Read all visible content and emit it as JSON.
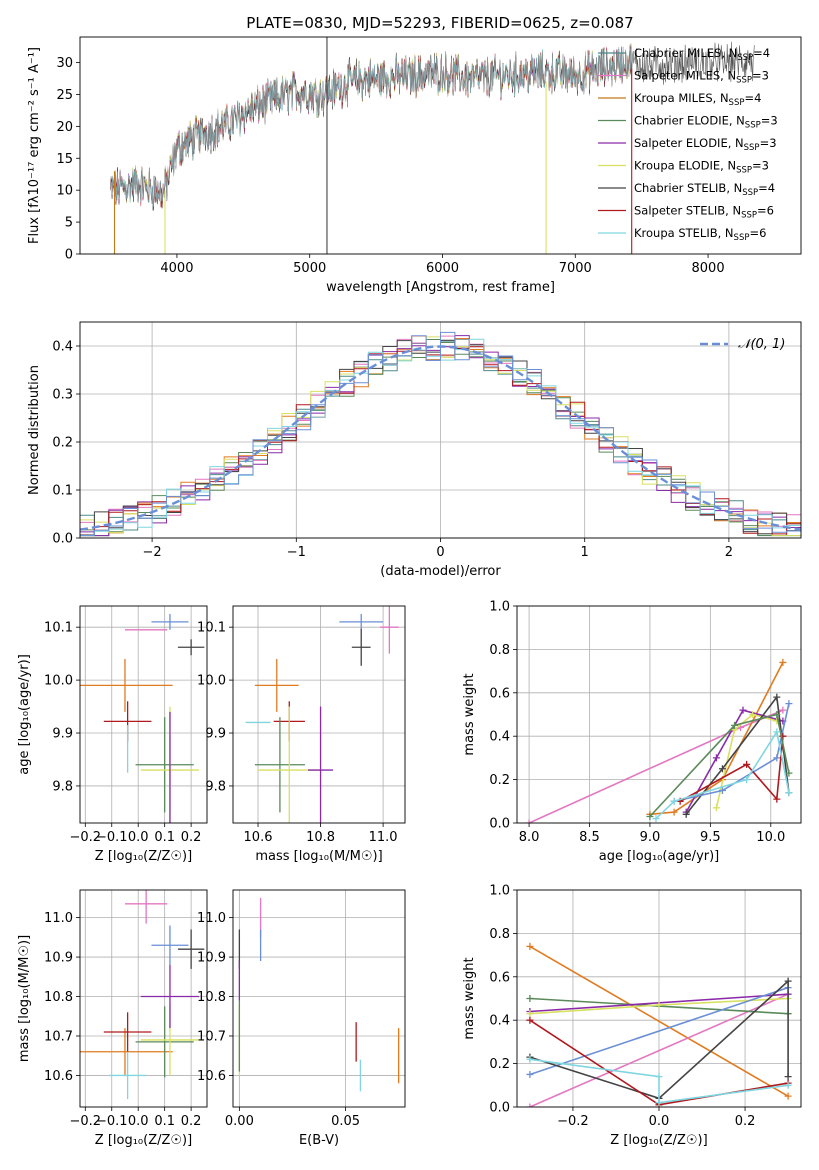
{
  "figure": {
    "title": "PLATE=0830, MJD=52293, FIBERID=0625, z=0.087"
  },
  "chart_data": [
    {
      "id": "spectrum",
      "type": "line",
      "xlabel": "wavelength [Angstrom, rest frame]",
      "ylabel": "Flux [fλ10⁻¹⁷ erg cm⁻² s⁻¹ A⁻¹]",
      "xlim": [
        3270,
        8700
      ],
      "ylim": [
        0,
        34
      ],
      "xticks": [
        4000,
        5000,
        6000,
        7000,
        8000
      ],
      "yticks": [
        0,
        5,
        10,
        15,
        20,
        25,
        30
      ],
      "grid": false,
      "legend_position": "top-right",
      "continuum": [
        {
          "x": 3500,
          "y": 10
        },
        {
          "x": 3700,
          "y": 11
        },
        {
          "x": 3900,
          "y": 9.5
        },
        {
          "x": 4000,
          "y": 16.5
        },
        {
          "x": 4200,
          "y": 19
        },
        {
          "x": 4400,
          "y": 20.5
        },
        {
          "x": 4500,
          "y": 22
        },
        {
          "x": 4700,
          "y": 24
        },
        {
          "x": 4900,
          "y": 25.5
        },
        {
          "x": 5100,
          "y": 25
        },
        {
          "x": 5300,
          "y": 27
        },
        {
          "x": 5500,
          "y": 27.5
        },
        {
          "x": 5800,
          "y": 28
        },
        {
          "x": 6000,
          "y": 28.5
        },
        {
          "x": 6200,
          "y": 27.5
        },
        {
          "x": 6500,
          "y": 28
        },
        {
          "x": 6800,
          "y": 28.5
        },
        {
          "x": 7000,
          "y": 28
        },
        {
          "x": 7200,
          "y": 29
        },
        {
          "x": 7400,
          "y": 30
        },
        {
          "x": 7600,
          "y": 29.5
        },
        {
          "x": 8000,
          "y": 30
        },
        {
          "x": 8200,
          "y": 30
        },
        {
          "x": 8500,
          "y": 30
        }
      ],
      "series": [
        {
          "name": "Chabrier MILES, N_SSP=4",
          "color": "#4b8b8b"
        },
        {
          "name": "Salpeter MILES, N_SSP=3",
          "color": "#e377c2"
        },
        {
          "name": "Kroupa MILES, N_SSP=4",
          "color": "#c07a1a"
        },
        {
          "name": "Chabrier ELODIE, N_SSP=3",
          "color": "#5a8a5a"
        },
        {
          "name": "Salpeter ELODIE, N_SSP=3",
          "color": "#8a2aa8"
        },
        {
          "name": "Kroupa ELODIE, N_SSP=3",
          "color": "#d8e060"
        },
        {
          "name": "Chabrier STELIB, N_SSP=4",
          "color": "#444444"
        },
        {
          "name": "Salpeter STELIB, N_SSP=6",
          "color": "#b0191e"
        },
        {
          "name": "Kroupa STELIB, N_SSP=6",
          "color": "#7fd6e0"
        }
      ]
    },
    {
      "id": "residuals",
      "type": "line",
      "xlabel": "(data-model)/error",
      "ylabel": "Normed distribution",
      "xlim": [
        -2.5,
        2.5
      ],
      "ylim": [
        0,
        0.45
      ],
      "xticks": [
        -2,
        -1,
        0,
        1,
        2
      ],
      "yticks": [
        0.0,
        0.1,
        0.2,
        0.3,
        0.4
      ],
      "grid": true,
      "legend_position": "top-right",
      "legend_entry": "𝒩(0, 1)",
      "gaussian": {
        "mean": 0,
        "sigma": 1,
        "color": "#6a8fd6"
      },
      "histogram_colors": [
        "#4b8b8b",
        "#e377c2",
        "#e07b20",
        "#5a8a5a",
        "#8a2aa8",
        "#d8e060",
        "#444444",
        "#b0191e",
        "#7fd6e0",
        "#6a8fd6"
      ]
    },
    {
      "id": "age_vs_Z",
      "type": "scatter",
      "xlabel": "Z [log₁₀(Z/Z☉)]",
      "ylabel": "age  [log₁₀(age/yr)]",
      "xlim": [
        -0.22,
        0.26
      ],
      "ylim": [
        9.73,
        10.14
      ],
      "xticks": [
        -0.2,
        -0.1,
        0.0,
        0.1,
        0.2
      ],
      "yticks": [
        9.8,
        9.9,
        10.0,
        10.1
      ],
      "grid": true,
      "points": [
        {
          "x": 0.03,
          "y": 10.095,
          "xerr": 0.08,
          "yerr": 0.0,
          "color": "#e377c2"
        },
        {
          "x": 0.12,
          "y": 10.11,
          "xerr": 0.07,
          "yerr": 0.015,
          "color": "#6a8fd6"
        },
        {
          "x": 0.2,
          "y": 10.062,
          "xerr": 0.05,
          "yerr": 0.015,
          "color": "#444444"
        },
        {
          "x": -0.05,
          "y": 9.99,
          "xerr": 0.18,
          "yerr": 0.05,
          "color": "#e07b20"
        },
        {
          "x": -0.04,
          "y": 9.922,
          "xerr": 0.09,
          "yerr": 0.038,
          "color": "#b0191e"
        },
        {
          "x": 0.0,
          "y": 9.92,
          "xerr": 0.0,
          "yerr": 0.0,
          "color": "#b0191e"
        },
        {
          "x": 0.1,
          "y": 9.84,
          "xerr": 0.11,
          "yerr": 0.09,
          "color": "#5a8a5a"
        },
        {
          "x": 0.12,
          "y": 9.83,
          "xerr": 0.11,
          "yerr": 0.12,
          "color": "#d8e060"
        },
        {
          "x": 0.12,
          "y": 9.82,
          "xerr": 0.0,
          "yerr": 0.12,
          "color": "#8a2aa8"
        },
        {
          "x": -0.04,
          "y": 9.87,
          "xerr": 0.0,
          "yerr": 0.045,
          "color": "#7fd6e0"
        }
      ]
    },
    {
      "id": "age_vs_mass",
      "type": "scatter",
      "xlabel": "mass [log₁₀(M/M☉)]",
      "ylabel": "",
      "xlim": [
        10.52,
        11.07
      ],
      "ylim": [
        9.73,
        10.14
      ],
      "xticks": [
        10.6,
        10.8,
        11.0
      ],
      "yticks": [
        9.8,
        9.9,
        10.0,
        10.1
      ],
      "grid": true,
      "points": [
        {
          "x": 11.02,
          "y": 10.1,
          "xerr": 0.03,
          "yerr": 0.05,
          "color": "#e377c2"
        },
        {
          "x": 10.93,
          "y": 10.11,
          "xerr": 0.07,
          "yerr": 0.015,
          "color": "#6a8fd6"
        },
        {
          "x": 10.93,
          "y": 10.062,
          "xerr": 0.03,
          "yerr": 0.035,
          "color": "#444444"
        },
        {
          "x": 10.66,
          "y": 9.99,
          "xerr": 0.07,
          "yerr": 0.05,
          "color": "#e07b20"
        },
        {
          "x": 10.7,
          "y": 9.922,
          "xerr": 0.05,
          "yerr": 0.038,
          "color": "#b0191e"
        },
        {
          "x": 10.6,
          "y": 9.92,
          "xerr": 0.04,
          "yerr": 0.0,
          "color": "#7fd6e0"
        },
        {
          "x": 10.67,
          "y": 9.84,
          "xerr": 0.08,
          "yerr": 0.09,
          "color": "#5a8a5a"
        },
        {
          "x": 10.7,
          "y": 9.83,
          "xerr": 0.1,
          "yerr": 0.12,
          "color": "#d8e060"
        },
        {
          "x": 10.8,
          "y": 9.83,
          "xerr": 0.04,
          "yerr": 0.12,
          "color": "#8a2aa8"
        }
      ]
    },
    {
      "id": "massweight_vs_age",
      "type": "line",
      "xlabel": "age  [log₁₀(age/yr)]",
      "ylabel": "mass weight",
      "xlim": [
        7.9,
        10.25
      ],
      "ylim": [
        0.0,
        1.0
      ],
      "xticks": [
        8.0,
        8.5,
        9.0,
        9.5,
        10.0
      ],
      "yticks": [
        0.0,
        0.2,
        0.4,
        0.6,
        0.8,
        1.0
      ],
      "grid": true,
      "series": [
        {
          "color": "#e377c2",
          "x": [
            8.0,
            9.75,
            10.1
          ],
          "y": [
            0.0,
            0.44,
            0.52
          ]
        },
        {
          "color": "#e07b20",
          "x": [
            9.0,
            9.2,
            9.6,
            10.1
          ],
          "y": [
            0.04,
            0.05,
            0.2,
            0.74
          ]
        },
        {
          "color": "#8a2aa8",
          "x": [
            9.3,
            9.55,
            9.77,
            10.1
          ],
          "y": [
            0.05,
            0.3,
            0.52,
            0.47
          ]
        },
        {
          "color": "#d8e060",
          "x": [
            9.55,
            9.7,
            9.85,
            10.05
          ],
          "y": [
            0.07,
            0.43,
            0.5,
            0.47
          ]
        },
        {
          "color": "#444444",
          "x": [
            9.3,
            9.6,
            10.05,
            10.15
          ],
          "y": [
            0.04,
            0.25,
            0.58,
            0.14
          ]
        },
        {
          "color": "#6a8fd6",
          "x": [
            9.2,
            9.6,
            10.05,
            10.15
          ],
          "y": [
            0.1,
            0.15,
            0.3,
            0.55
          ]
        },
        {
          "color": "#b0191e",
          "x": [
            9.25,
            9.8,
            10.05,
            10.1
          ],
          "y": [
            0.1,
            0.27,
            0.11,
            0.4
          ]
        },
        {
          "color": "#5a8a5a",
          "x": [
            9.0,
            9.7,
            10.05,
            10.15
          ],
          "y": [
            0.03,
            0.45,
            0.5,
            0.23
          ]
        },
        {
          "color": "#7fd6e0",
          "x": [
            9.05,
            9.2,
            9.8,
            10.05,
            10.15
          ],
          "y": [
            0.02,
            0.1,
            0.2,
            0.42,
            0.14
          ]
        }
      ]
    },
    {
      "id": "mass_vs_Z",
      "type": "scatter",
      "xlabel": "Z [log₁₀(Z/Z☉)]",
      "ylabel": "mass [log₁₀(M/M☉)]",
      "xlim": [
        -0.22,
        0.26
      ],
      "ylim": [
        10.52,
        11.07
      ],
      "xticks": [
        -0.2,
        -0.1,
        0.0,
        0.1,
        0.2
      ],
      "yticks": [
        10.6,
        10.7,
        10.8,
        10.9,
        11.0
      ],
      "grid": true,
      "points": [
        {
          "x": 0.03,
          "y": 11.035,
          "xerr": 0.08,
          "yerr": 0.05,
          "color": "#e377c2"
        },
        {
          "x": 0.12,
          "y": 10.93,
          "xerr": 0.07,
          "yerr": 0.05,
          "color": "#6a8fd6"
        },
        {
          "x": 0.2,
          "y": 10.92,
          "xerr": 0.05,
          "yerr": 0.05,
          "color": "#444444"
        },
        {
          "x": -0.05,
          "y": 10.66,
          "xerr": 0.18,
          "yerr": 0.06,
          "color": "#e07b20"
        },
        {
          "x": -0.04,
          "y": 10.71,
          "xerr": 0.09,
          "yerr": 0.05,
          "color": "#b0191e"
        },
        {
          "x": -0.04,
          "y": 10.6,
          "xerr": 0.07,
          "yerr": 0.06,
          "color": "#7fd6e0"
        },
        {
          "x": 0.1,
          "y": 10.685,
          "xerr": 0.11,
          "yerr": 0.09,
          "color": "#5a8a5a"
        },
        {
          "x": 0.12,
          "y": 10.69,
          "xerr": 0.11,
          "yerr": 0.09,
          "color": "#d8e060"
        },
        {
          "x": 0.12,
          "y": 10.8,
          "xerr": 0.11,
          "yerr": 0.08,
          "color": "#8a2aa8"
        }
      ]
    },
    {
      "id": "mass_vs_EBV",
      "type": "scatter",
      "xlabel": "E(B-V)",
      "ylabel": "",
      "xlim": [
        -0.003,
        0.078
      ],
      "ylim": [
        10.52,
        11.07
      ],
      "xticks": [
        0.0,
        0.05
      ],
      "yticks": [
        10.6,
        10.7,
        10.8,
        10.9,
        11.0
      ],
      "grid": true,
      "points": [
        {
          "x": 0.01,
          "y": 11.0,
          "xerr": 0.0,
          "yerr": 0.05,
          "color": "#e377c2"
        },
        {
          "x": 0.01,
          "y": 10.93,
          "xerr": 0.0,
          "yerr": 0.04,
          "color": "#6a8fd6"
        },
        {
          "x": 0.0,
          "y": 10.92,
          "xerr": 0.0,
          "yerr": 0.05,
          "color": "#444444"
        },
        {
          "x": 0.0,
          "y": 10.84,
          "xerr": 0.0,
          "yerr": 0.05,
          "color": "#8a2aa8"
        },
        {
          "x": 0.0,
          "y": 10.69,
          "xerr": 0.0,
          "yerr": 0.09,
          "color": "#d8e060"
        },
        {
          "x": 0.0,
          "y": 10.7,
          "xerr": 0.0,
          "yerr": 0.09,
          "color": "#5a8a5a"
        },
        {
          "x": 0.055,
          "y": 10.685,
          "xerr": 0.0,
          "yerr": 0.05,
          "color": "#b0191e"
        },
        {
          "x": 0.057,
          "y": 10.6,
          "xerr": 0.0,
          "yerr": 0.04,
          "color": "#7fd6e0"
        },
        {
          "x": 0.075,
          "y": 10.65,
          "xerr": 0.0,
          "yerr": 0.07,
          "color": "#e07b20"
        }
      ]
    },
    {
      "id": "massweight_vs_Z",
      "type": "line",
      "xlabel": "Z [log₁₀(Z/Z☉)]",
      "ylabel": "mass weight",
      "xlim": [
        -0.33,
        0.33
      ],
      "ylim": [
        0.0,
        1.0
      ],
      "xticks": [
        -0.2,
        0.0,
        0.2
      ],
      "yticks": [
        0.0,
        0.2,
        0.4,
        0.6,
        0.8,
        1.0
      ],
      "grid": true,
      "series": [
        {
          "color": "#e07b20",
          "x": [
            -0.3,
            0.3
          ],
          "y": [
            0.74,
            0.05
          ]
        },
        {
          "color": "#e377c2",
          "x": [
            -0.3,
            0.3
          ],
          "y": [
            0.0,
            0.52
          ]
        },
        {
          "color": "#5a8a5a",
          "x": [
            -0.3,
            0.3
          ],
          "y": [
            0.5,
            0.43
          ]
        },
        {
          "color": "#8a2aa8",
          "x": [
            -0.3,
            0.3
          ],
          "y": [
            0.44,
            0.52
          ]
        },
        {
          "color": "#d8e060",
          "x": [
            -0.3,
            0.0,
            0.3
          ],
          "y": [
            0.43,
            0.47,
            0.5
          ]
        },
        {
          "color": "#6a8fd6",
          "x": [
            -0.3,
            0.3
          ],
          "y": [
            0.15,
            0.55
          ]
        },
        {
          "color": "#444444",
          "x": [
            -0.3,
            0.0,
            0.3,
            0.3
          ],
          "y": [
            0.23,
            0.04,
            0.58,
            0.14
          ]
        },
        {
          "color": "#b0191e",
          "x": [
            -0.3,
            0.0,
            0.3
          ],
          "y": [
            0.4,
            0.01,
            0.11
          ]
        },
        {
          "color": "#7fd6e0",
          "x": [
            -0.3,
            0.0,
            0.0,
            0.3
          ],
          "y": [
            0.22,
            0.14,
            0.02,
            0.1
          ]
        }
      ]
    }
  ]
}
